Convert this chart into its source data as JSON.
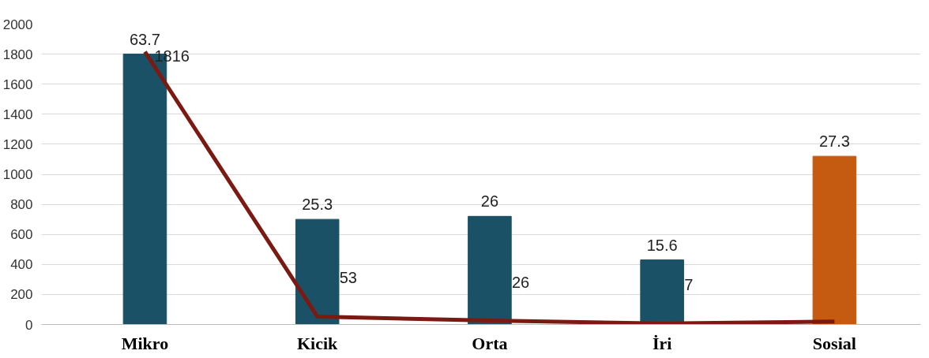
{
  "chart_data": {
    "type": "bar",
    "categories": [
      "Mikro",
      "Kicik",
      "Orta",
      "İri",
      "Sosial"
    ],
    "ylim": [
      0,
      2000
    ],
    "yticks": [
      0,
      200,
      400,
      600,
      800,
      1000,
      1200,
      1400,
      1600,
      1800,
      2000
    ],
    "grid": "y",
    "annotations": [
      {
        "text": "63.7",
        "x": "Mikro",
        "y": 1800
      },
      {
        "text": "25.3",
        "x": "Kicik",
        "y": 700
      },
      {
        "text": "26",
        "x": "Orta",
        "y": 720
      },
      {
        "text": "15.6",
        "x": "İri",
        "y": 430
      },
      {
        "text": "27.3",
        "x": "Sosial",
        "y": 1120
      }
    ],
    "series": [
      {
        "colors": [
          "#1a5166",
          "#1a5166",
          "#1a5166",
          "#1a5166",
          "#c55a11"
        ],
        "values": [
          1800,
          700,
          720,
          430,
          1120
        ]
      },
      {
        "type": "line",
        "color": "#7b1a12",
        "values": [
          1816,
          53,
          26,
          7,
          20
        ],
        "value_labels": [
          "1816",
          "53",
          "26",
          "7",
          null
        ]
      }
    ]
  }
}
